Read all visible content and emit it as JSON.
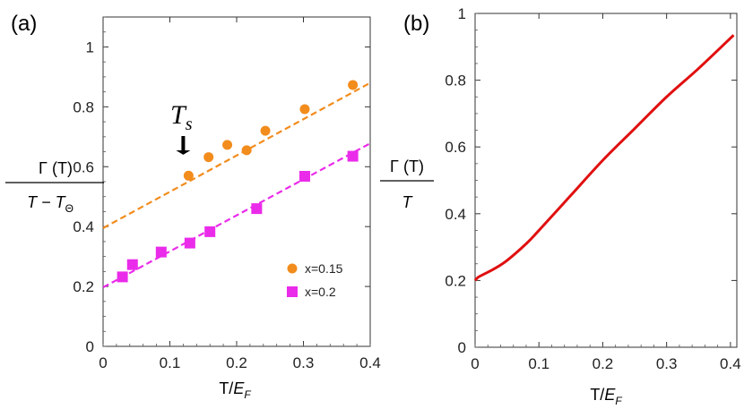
{
  "chart_data": [
    {
      "panel_label": "(a)",
      "type": "scatter",
      "xlabel": {
        "main": "T/",
        "var": "E",
        "sub": "F"
      },
      "ylabel": {
        "num": "Γ (T)",
        "den_left": "T − T",
        "den_sub": "Θ"
      },
      "xlim": [
        0,
        0.4
      ],
      "ylim": [
        0,
        1.1
      ],
      "xticks": [
        "0",
        "0.1",
        "0.2",
        "0.3",
        "0.4"
      ],
      "xtick_values": [
        0,
        0.1,
        0.2,
        0.3,
        0.4
      ],
      "yticks": [
        "0",
        "0.2",
        "0.4",
        "0.6",
        "0.8",
        "1"
      ],
      "ytick_values": [
        0,
        0.2,
        0.4,
        0.6,
        0.8,
        1
      ],
      "series": [
        {
          "name": "x=0.15",
          "marker": "circle",
          "color": "#f28c1c",
          "x": [
            0.128,
            0.158,
            0.186,
            0.215,
            0.243,
            0.302,
            0.374
          ],
          "y": [
            0.57,
            0.632,
            0.673,
            0.655,
            0.72,
            0.792,
            0.873
          ],
          "fit": {
            "x": [
              0,
              0.4
            ],
            "y": [
              0.395,
              0.88
            ],
            "style": "dashed"
          }
        },
        {
          "name": "x=0.2",
          "marker": "square",
          "color": "#ea2bea",
          "x": [
            0.029,
            0.044,
            0.087,
            0.13,
            0.16,
            0.23,
            0.302,
            0.374
          ],
          "y": [
            0.232,
            0.273,
            0.315,
            0.345,
            0.383,
            0.46,
            0.568,
            0.635
          ],
          "fit": {
            "x": [
              0,
              0.4
            ],
            "y": [
              0.197,
              0.678
            ],
            "style": "dashed"
          }
        }
      ],
      "annotation": {
        "text": "T",
        "sub": "s",
        "x": 0.12,
        "y": 0.7,
        "points_to_y": 0.64
      },
      "legend": "bottom-right"
    },
    {
      "panel_label": "(b)",
      "type": "line",
      "xlabel": {
        "main": "T/",
        "var": "E",
        "sub": "F"
      },
      "ylabel": {
        "num": "Γ (T)",
        "den": "T"
      },
      "xlim": [
        0,
        0.41
      ],
      "ylim": [
        0,
        1
      ],
      "xticks": [
        "0",
        "0.1",
        "0.2",
        "0.3",
        "0.4"
      ],
      "xtick_values": [
        0,
        0.1,
        0.2,
        0.3,
        0.4
      ],
      "yticks": [
        "0",
        "0.2",
        "0.4",
        "0.6",
        "0.8",
        "1"
      ],
      "ytick_values": [
        0,
        0.2,
        0.4,
        0.6,
        0.8,
        1
      ],
      "series": [
        {
          "color": "#e01010",
          "x": [
            0,
            0.005,
            0.015,
            0.03,
            0.05,
            0.08,
            0.1,
            0.15,
            0.2,
            0.25,
            0.3,
            0.35,
            0.405
          ],
          "y": [
            0.2,
            0.21,
            0.22,
            0.235,
            0.26,
            0.31,
            0.35,
            0.455,
            0.56,
            0.655,
            0.75,
            0.835,
            0.935
          ]
        }
      ]
    }
  ]
}
